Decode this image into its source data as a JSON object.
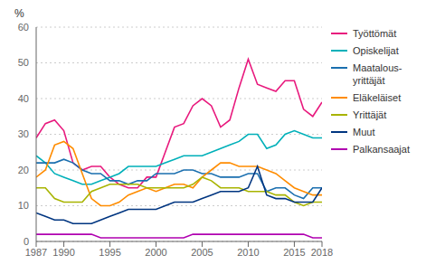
{
  "chart_data": {
    "type": "line",
    "y_label": "%",
    "x": [
      1987,
      1988,
      1989,
      1990,
      1991,
      1992,
      1993,
      1994,
      1995,
      1996,
      1997,
      1998,
      1999,
      2000,
      2001,
      2002,
      2003,
      2004,
      2005,
      2006,
      2007,
      2008,
      2009,
      2010,
      2011,
      2012,
      2013,
      2014,
      2015,
      2016,
      2017,
      2018
    ],
    "series": [
      {
        "name": "Työttömät",
        "color": "#e8197d",
        "values": [
          29,
          33,
          34,
          31,
          22,
          20,
          21,
          21,
          18,
          16,
          15,
          15,
          18,
          18,
          25,
          32,
          33,
          38,
          40,
          38,
          32,
          34,
          43,
          51,
          44,
          43,
          42,
          45,
          45,
          37,
          35,
          39
        ]
      },
      {
        "name": "Opiskelijat",
        "color": "#00b0b9",
        "values": [
          24,
          22,
          19,
          18,
          17,
          16,
          16,
          17,
          18,
          19,
          21,
          21,
          21,
          21,
          22,
          23,
          24,
          24,
          24,
          25,
          26,
          27,
          28,
          30,
          30,
          26,
          27,
          30,
          31,
          30,
          29,
          29
        ]
      },
      {
        "name": "Maatalous-\nyrittäjät",
        "color": "#1a6faf",
        "values": [
          22,
          22,
          22,
          23,
          22,
          20,
          19,
          19,
          17,
          17,
          16,
          17,
          17,
          19,
          19,
          19,
          20,
          20,
          19,
          19,
          18,
          18,
          18,
          19,
          19,
          14,
          15,
          15,
          13,
          12,
          15,
          15
        ]
      },
      {
        "name": "Eläkeläiset",
        "color": "#ff8c00",
        "values": [
          18,
          20,
          27,
          28,
          26,
          19,
          12,
          10,
          10,
          11,
          13,
          14,
          15,
          14,
          15,
          16,
          16,
          15,
          18,
          20,
          22,
          22,
          21,
          21,
          21,
          20,
          19,
          17,
          15,
          14,
          13,
          13
        ]
      },
      {
        "name": "Yrittäjät",
        "color": "#a8b400",
        "values": [
          15,
          15,
          12,
          11,
          11,
          11,
          14,
          15,
          16,
          16,
          16,
          16,
          15,
          15,
          15,
          15,
          15,
          16,
          18,
          17,
          15,
          15,
          15,
          14,
          14,
          14,
          13,
          13,
          11,
          10,
          11,
          11
        ]
      },
      {
        "name": "Muut",
        "color": "#003580",
        "values": [
          8,
          7,
          6,
          6,
          5,
          5,
          5,
          6,
          7,
          8,
          9,
          9,
          9,
          9,
          10,
          11,
          11,
          11,
          12,
          13,
          14,
          14,
          14,
          15,
          21,
          13,
          12,
          12,
          11,
          11,
          11,
          15
        ]
      },
      {
        "name": "Palkansaajat",
        "color": "#b000b0",
        "values": [
          2,
          2,
          2,
          2,
          2,
          2,
          2,
          1,
          1,
          1,
          1,
          1,
          1,
          1,
          1,
          1,
          1,
          2,
          2,
          2,
          2,
          2,
          2,
          2,
          2,
          2,
          2,
          2,
          2,
          2,
          1,
          1
        ]
      }
    ],
    "xlim": [
      1987,
      2018
    ],
    "xticks": [
      1987,
      1990,
      1995,
      2000,
      2005,
      2010,
      2015,
      2018
    ],
    "ylim": [
      0,
      60
    ],
    "yticks": [
      0,
      10,
      20,
      30,
      40,
      50,
      60
    ],
    "grid": true,
    "legend": "right"
  }
}
